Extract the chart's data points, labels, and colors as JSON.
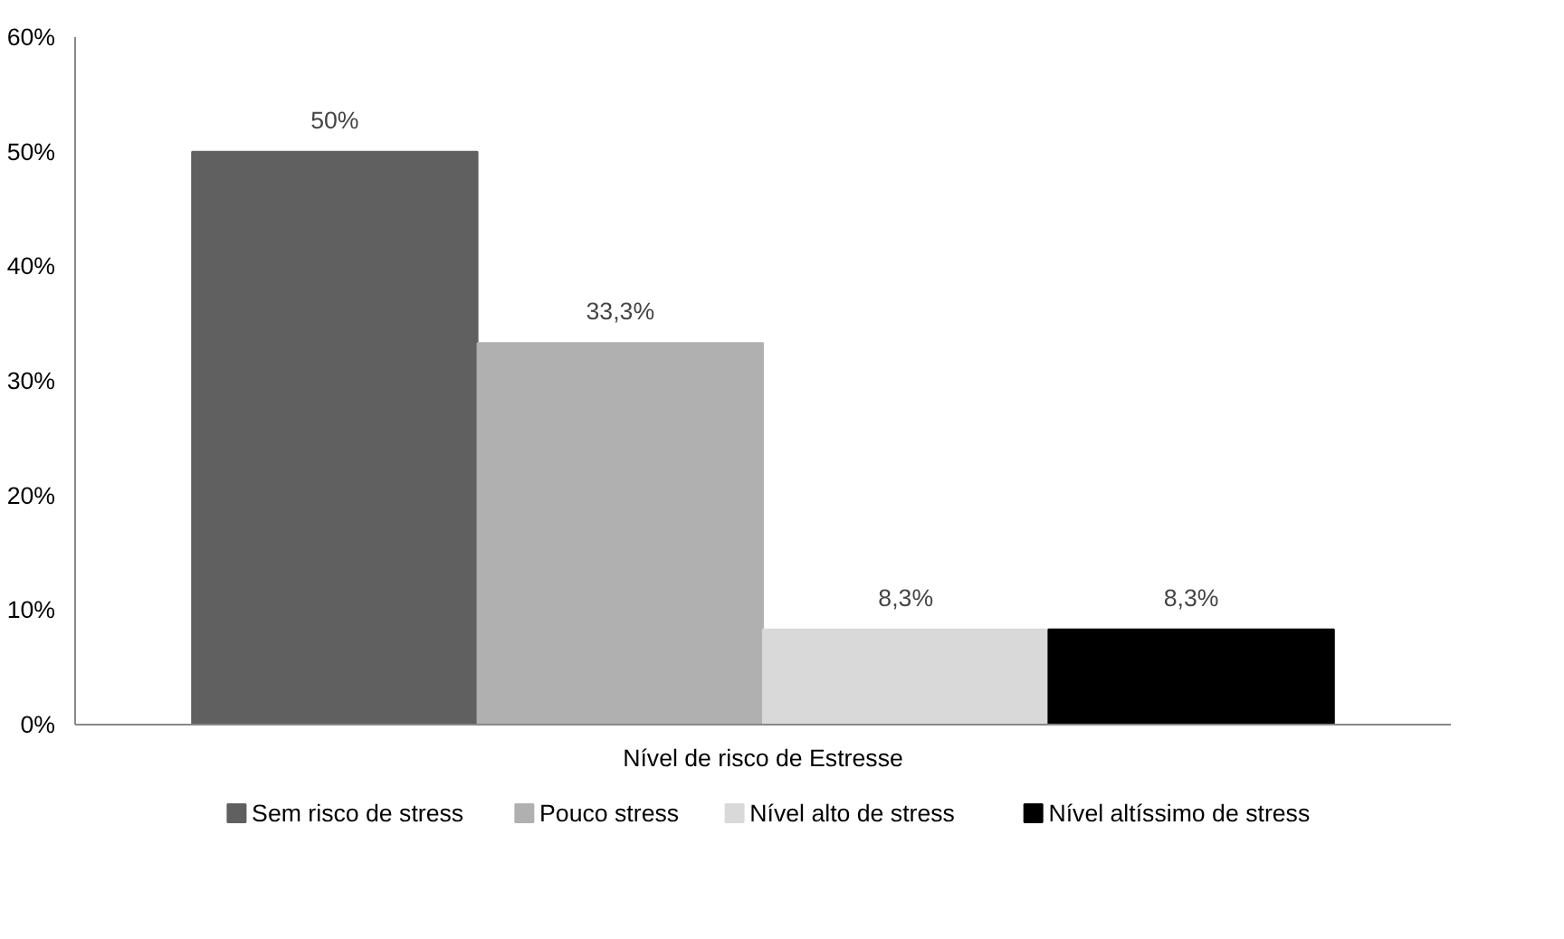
{
  "chart_data": {
    "type": "bar",
    "xlabel": null,
    "categories": [
      "Nível de risco de Estresse"
    ],
    "series": [
      {
        "name": "Sem risco de stress",
        "color": "#606060",
        "values": [
          50
        ],
        "value_labels": [
          "50%"
        ]
      },
      {
        "name": "Pouco stress",
        "color": "#b0b0b0",
        "values": [
          33.3
        ],
        "value_labels": [
          "33,3%"
        ]
      },
      {
        "name": "Nível alto de stress",
        "color": "#d9d9d9",
        "values": [
          8.3
        ],
        "value_labels": [
          "8,3%"
        ]
      },
      {
        "name": "Nível altíssimo de stress",
        "color": "#000000",
        "values": [
          8.3
        ],
        "value_labels": [
          "8,3%"
        ]
      }
    ],
    "ylim": [
      0,
      60
    ],
    "yticks": [
      {
        "value": 0,
        "label": "0%"
      },
      {
        "value": 10,
        "label": "10%"
      },
      {
        "value": 20,
        "label": "20%"
      },
      {
        "value": 30,
        "label": "30%"
      },
      {
        "value": 40,
        "label": "40%"
      },
      {
        "value": 50,
        "label": "50%"
      },
      {
        "value": 60,
        "label": "60%"
      }
    ],
    "legend": "bottom"
  }
}
